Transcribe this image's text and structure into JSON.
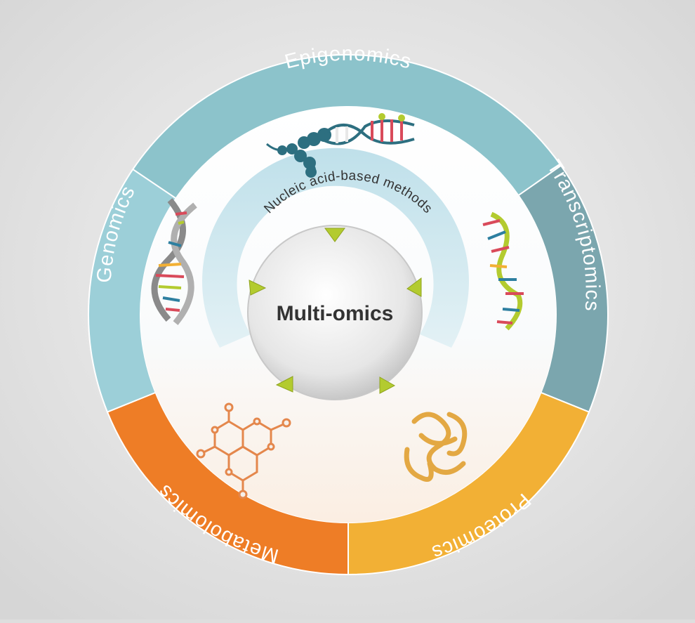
{
  "diagram": {
    "center_title": "Multi-omics",
    "inner_arc_label": "Nucleic acid-based methods",
    "segments": [
      {
        "key": "epigenomics",
        "label": "Epigenomics",
        "color": "#8cc3cb",
        "icon": "chromatin-dna-icon"
      },
      {
        "key": "transcriptomics",
        "label": "Transcriptomics",
        "color": "#7ba6ae",
        "icon": "rna-strand-icon"
      },
      {
        "key": "proteomics",
        "label": "Proteomics",
        "color": "#f2b035",
        "icon": "protein-fold-icon"
      },
      {
        "key": "metabolomics",
        "label": "Metabolomics",
        "color": "#ee7d26",
        "icon": "molecule-icon"
      },
      {
        "key": "genomics",
        "label": "Genomics",
        "color": "#9ccfd8",
        "icon": "dna-helix-icon"
      }
    ],
    "colors": {
      "background": "#dedede",
      "ring_divider": "#ffffff",
      "inner_band": "#c9e4ec",
      "arrow": "#b3cb2f",
      "center_text": "#333333"
    }
  }
}
